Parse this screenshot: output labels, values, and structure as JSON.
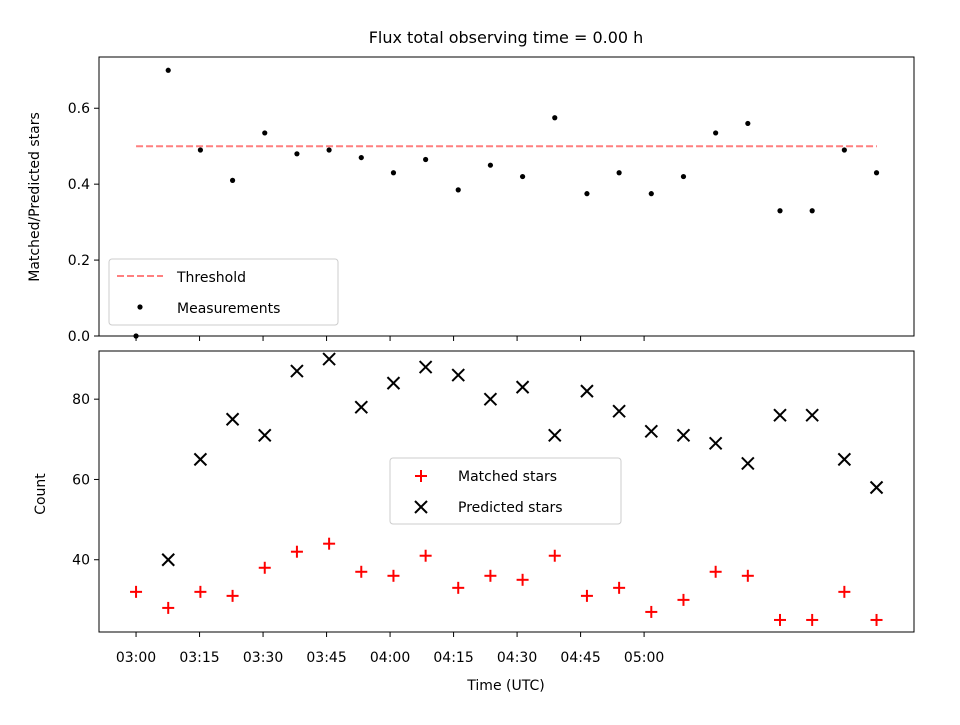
{
  "chart_data": [
    {
      "type": "scatter",
      "title": "Flux total observing time = 0.00 h",
      "xlabel": "",
      "ylabel": "Matched/Predicted stars",
      "x_unit": "minutes_since_03:00",
      "xlim": [
        -8.75,
        183.75
      ],
      "ylim": [
        0,
        0.735
      ],
      "yticks": [
        0.0,
        0.2,
        0.4,
        0.6
      ],
      "yticklabels": [
        "0.0",
        "0.2",
        "0.4",
        "0.6"
      ],
      "legend": {
        "placement": "lower-left"
      },
      "series": [
        {
          "name": "Threshold",
          "kind": "line",
          "style": "dashed",
          "color": "#ff7f7f",
          "x": [
            0,
            175
          ],
          "y": [
            0.5,
            0.5
          ]
        },
        {
          "name": "Measurements",
          "kind": "scatter",
          "marker": "dot",
          "color": "#000000",
          "x": [
            0,
            7.6,
            15.2,
            22.8,
            30.4,
            38.0,
            45.6,
            53.2,
            60.8,
            68.4,
            76.1,
            83.7,
            91.3,
            98.9,
            106.5,
            114.1,
            121.7,
            129.3,
            136.9,
            144.5,
            152.1,
            159.7,
            167.3,
            174.9
          ],
          "y": [
            0.0,
            0.7,
            0.49,
            0.41,
            0.535,
            0.48,
            0.49,
            0.47,
            0.43,
            0.465,
            0.385,
            0.45,
            0.42,
            0.575,
            0.375,
            0.43,
            0.375,
            0.42,
            0.535,
            0.56,
            0.33,
            0.33,
            0.49,
            0.43
          ]
        }
      ]
    },
    {
      "type": "scatter",
      "title": "",
      "xlabel": "Time (UTC)",
      "ylabel": "Count",
      "x_unit": "minutes_since_03:00",
      "xlim": [
        -8.75,
        183.75
      ],
      "ylim": [
        22,
        92
      ],
      "xticks": [
        0,
        15,
        30,
        45,
        60,
        75,
        90,
        105,
        120
      ],
      "xticklabels": [
        "03:00",
        "03:15",
        "03:30",
        "03:45",
        "04:00",
        "04:15",
        "04:30",
        "04:45",
        "05:00"
      ],
      "yticks": [
        40,
        60,
        80
      ],
      "yticklabels": [
        "40",
        "60",
        "80"
      ],
      "legend": {
        "placement": "center"
      },
      "series": [
        {
          "name": "Matched stars",
          "kind": "scatter",
          "marker": "plus",
          "color": "#ff0000",
          "x": [
            0,
            7.6,
            15.2,
            22.8,
            30.4,
            38.0,
            45.6,
            53.2,
            60.8,
            68.4,
            76.1,
            83.7,
            91.3,
            98.9,
            106.5,
            114.1,
            121.7,
            129.3,
            136.9,
            144.5,
            152.1,
            159.7,
            167.3,
            174.9
          ],
          "y": [
            32,
            28,
            32,
            31,
            38,
            42,
            44,
            37,
            36,
            41,
            33,
            36,
            35,
            41,
            31,
            33,
            27,
            30,
            37,
            36,
            25,
            25,
            32,
            25
          ]
        },
        {
          "name": "Predicted stars",
          "kind": "scatter",
          "marker": "x",
          "color": "#000000",
          "x": [
            7.6,
            15.2,
            22.8,
            30.4,
            38.0,
            45.6,
            53.2,
            60.8,
            68.4,
            76.1,
            83.7,
            91.3,
            98.9,
            106.5,
            114.1,
            121.7,
            129.3,
            136.9,
            144.5,
            152.1,
            159.7,
            167.3,
            174.9
          ],
          "y": [
            40,
            65,
            75,
            71,
            87,
            90,
            78,
            84,
            88,
            86,
            80,
            83,
            71,
            82,
            77,
            72,
            71,
            69,
            64,
            76,
            76,
            65,
            58
          ]
        }
      ]
    }
  ]
}
